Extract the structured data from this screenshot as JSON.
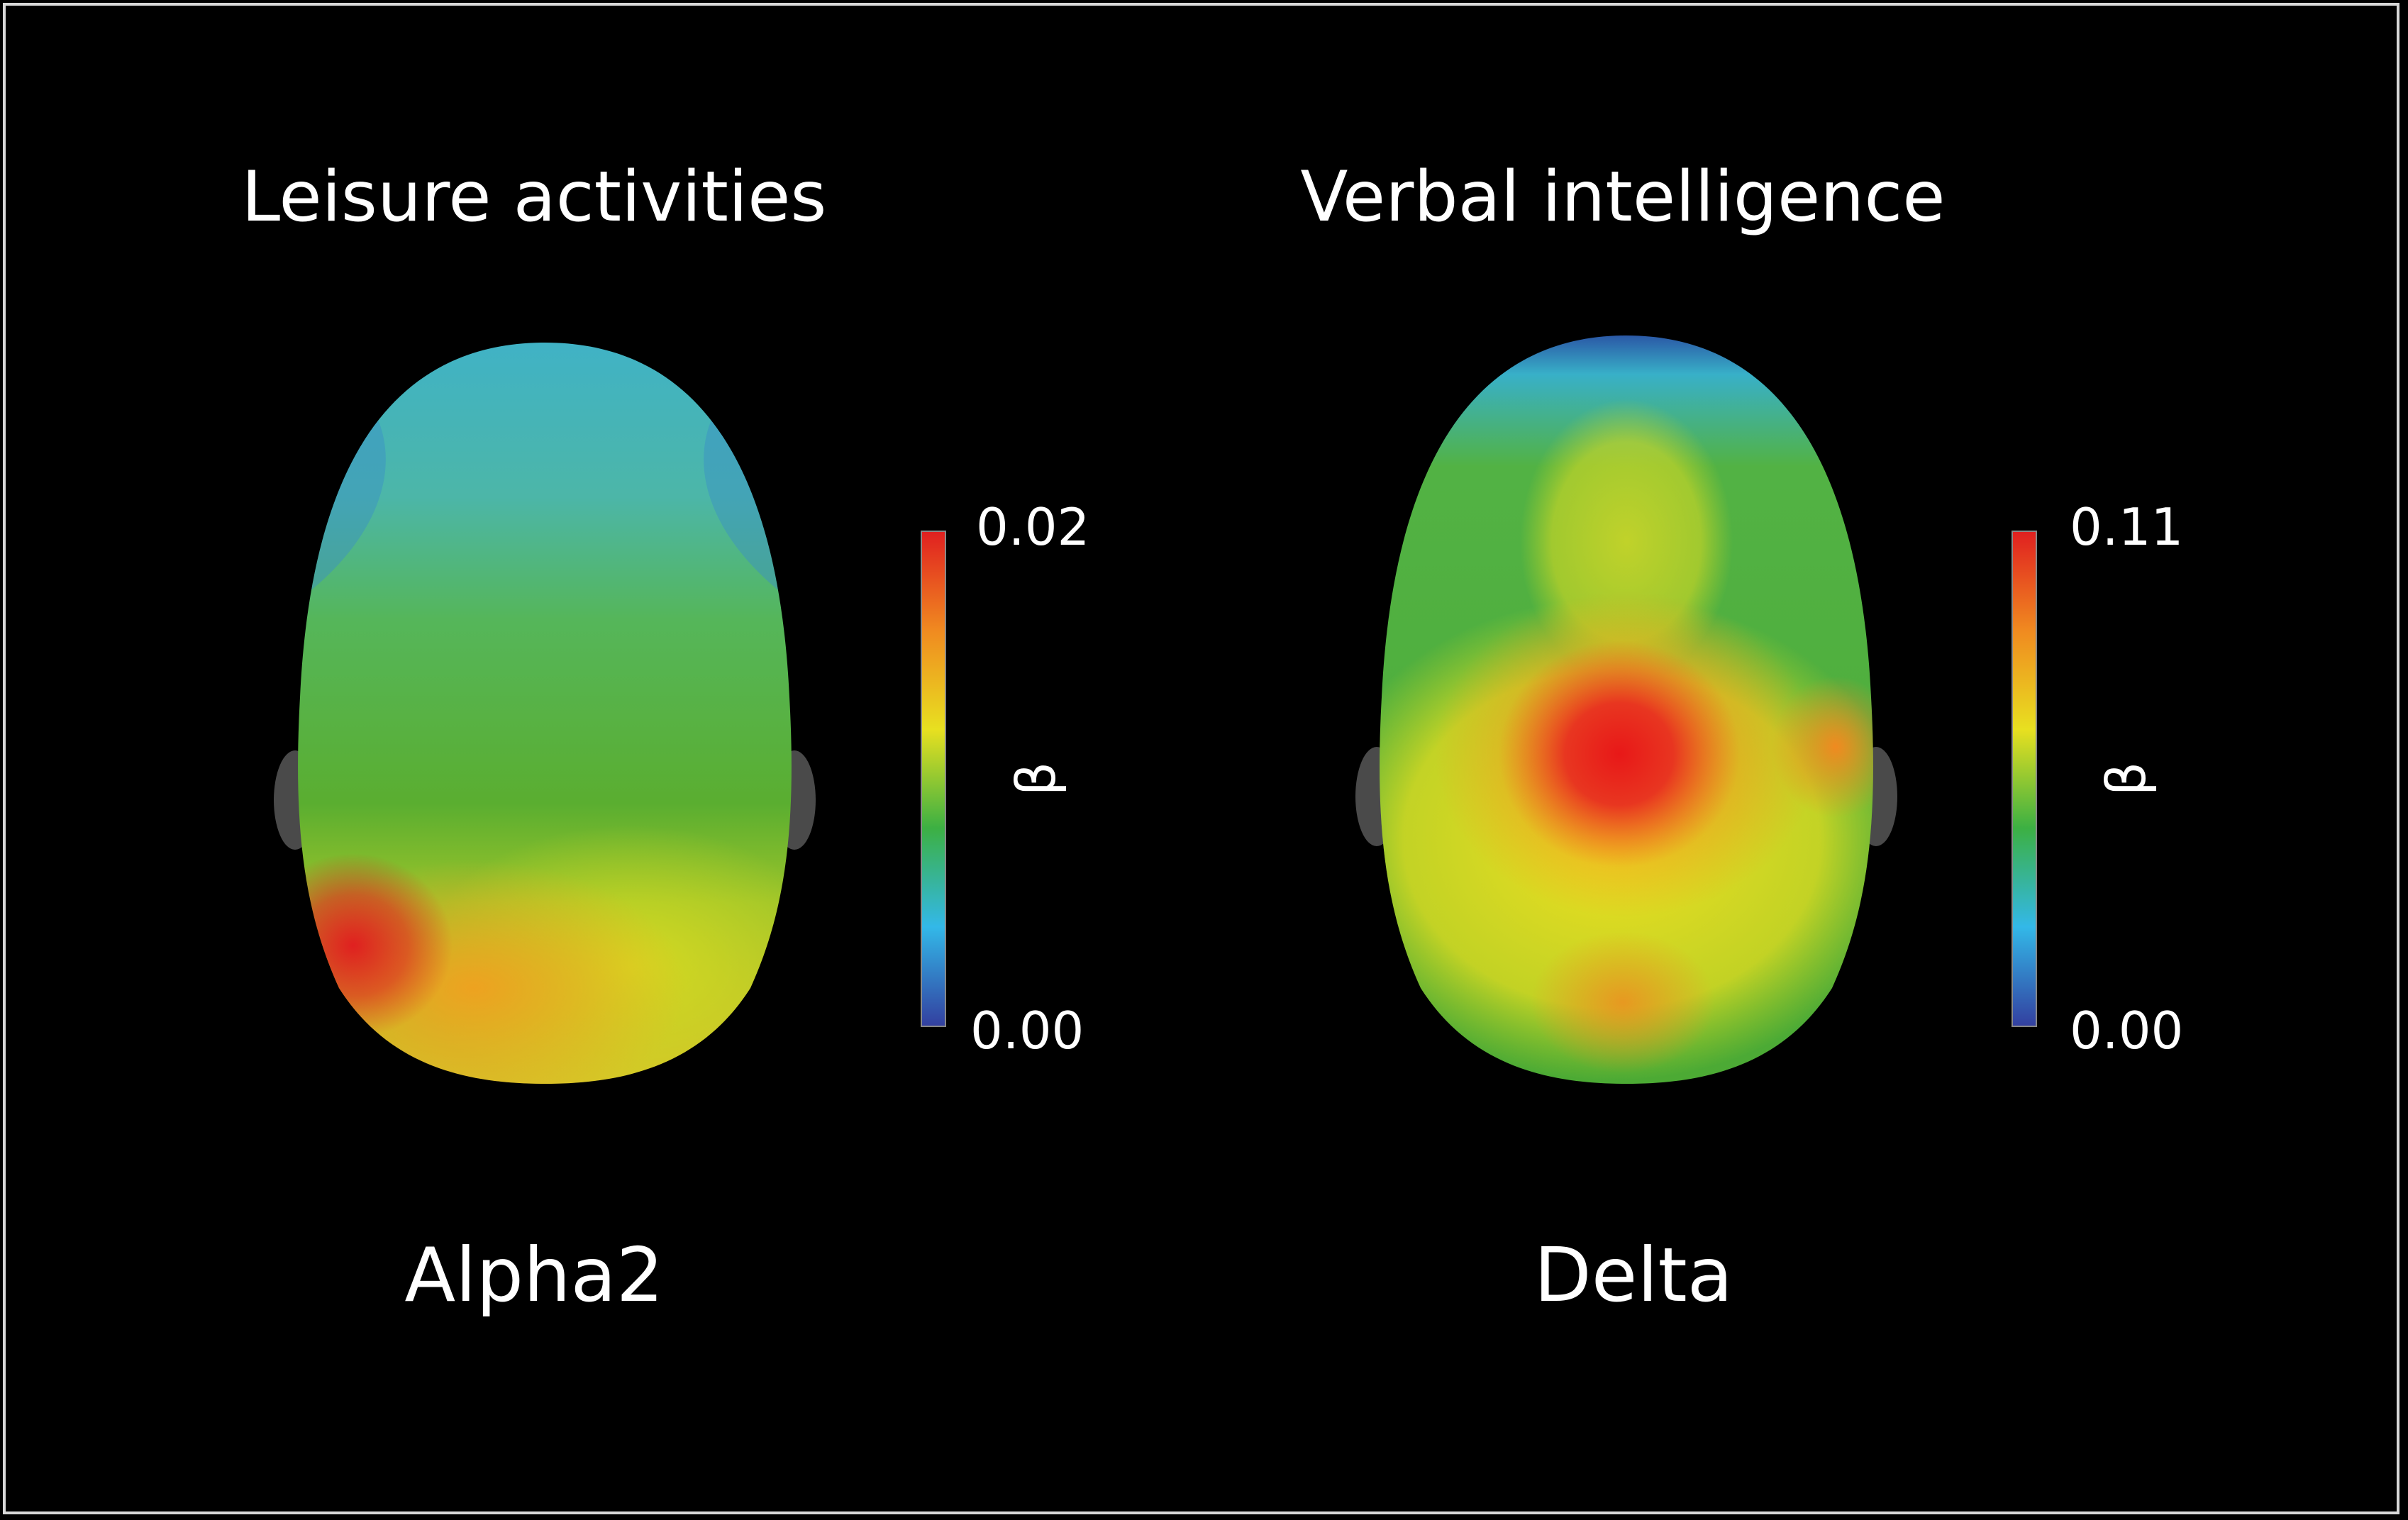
{
  "panels": [
    {
      "title": "Leisure activities",
      "band": "Alpha2",
      "colorbar": {
        "label": "β",
        "max_label": "0.02",
        "min_label": "0.00",
        "range": [
          0.0,
          0.02
        ]
      }
    },
    {
      "title": "Verbal intelligence",
      "band": "Delta",
      "colorbar": {
        "label": "β",
        "max_label": "0.11",
        "min_label": "0.00",
        "range": [
          0.0,
          0.11
        ]
      }
    }
  ],
  "colormap": [
    "#3340a0",
    "#33b8e8",
    "#3cb043",
    "#e8e020",
    "#f08a20",
    "#e02020"
  ],
  "background": "#000000"
}
